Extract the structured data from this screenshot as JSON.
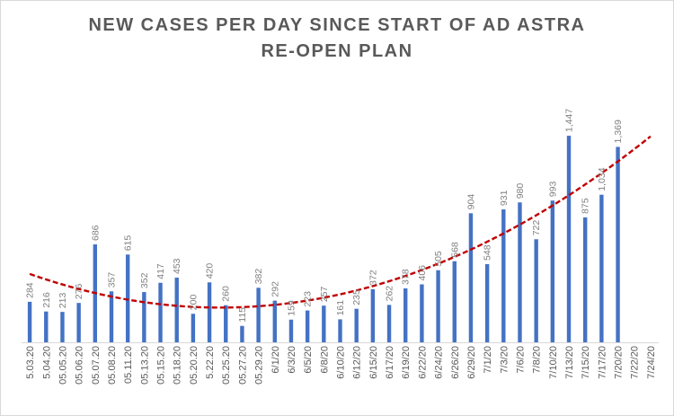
{
  "chart_data": {
    "type": "bar",
    "title_line1": "NEW CASES PER DAY SINCE START OF AD ASTRA",
    "title_line2": "RE-OPEN PLAN",
    "xlabel": "",
    "ylabel": "",
    "ylim": [
      0,
      1800
    ],
    "grid": false,
    "legend": "none",
    "colors": {
      "bar": "#4472c4",
      "trend": "#c00000"
    },
    "trendline": {
      "type": "polynomial",
      "style": "dashed",
      "color": "#c00000"
    },
    "categories": [
      "5.03.20",
      "5.04.20",
      "05.05.20",
      "05.06.20",
      "05.07.20",
      "05.08.20",
      "05.11.20",
      "05.13.20",
      "05.15.20",
      "05.18.20",
      "05.20.20",
      "5.22.20",
      "05.25.20",
      "05.27.20",
      "05.29.20",
      "6/1/20",
      "6/3/20",
      "6/5/20",
      "6/8/20",
      "6/10/20",
      "6/12/20",
      "6/15/20",
      "6/17/20",
      "6/19/20",
      "6/22/20",
      "6/24/20",
      "6/26/20",
      "6/29/20",
      "7/1/20",
      "7/3/20",
      "7/6/20",
      "7/8/20",
      "7/10/20",
      "7/13/20",
      "7/15/20",
      "7/17/20",
      "7/20/20",
      "7/22/20",
      "7/24/20"
    ],
    "values": [
      284,
      216,
      213,
      276,
      686,
      357,
      615,
      352,
      417,
      453,
      200,
      420,
      260,
      115,
      382,
      292,
      159,
      223,
      257,
      161,
      235,
      372,
      262,
      378,
      406,
      505,
      568,
      904,
      548,
      931,
      980,
      722,
      993,
      1447,
      875,
      1034,
      1369,
      null,
      null
    ],
    "value_labels": [
      "284",
      "216",
      "213",
      "276",
      "686",
      "357",
      "615",
      "352",
      "417",
      "453",
      "200",
      "420",
      "260",
      "115",
      "382",
      "292",
      "159",
      "223",
      "257",
      "161",
      "235",
      "372",
      "262",
      "378",
      "406",
      "505",
      "568",
      "904",
      "548",
      "931",
      "980",
      "722",
      "993",
      "1,447",
      "875",
      "1,034",
      "1,369",
      "",
      ""
    ]
  }
}
